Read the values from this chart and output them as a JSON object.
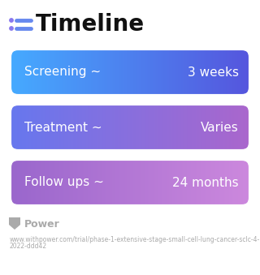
{
  "title": "Timeline",
  "background_color": "#ffffff",
  "bars": [
    {
      "label": "Screening ~",
      "value": "3 weeks",
      "c_left": "#45aaff",
      "c_right": "#5555dd"
    },
    {
      "label": "Treatment ~",
      "value": "Varies",
      "c_left": "#6677ee",
      "c_right": "#aa66cc"
    },
    {
      "label": "Follow ups ~",
      "value": "24 months",
      "c_left": "#9966cc",
      "c_right": "#cc88dd"
    }
  ],
  "icon_dot_color": "#8877ee",
  "icon_line_color": "#6688ee",
  "title_color": "#111111",
  "title_fontsize": 20,
  "bar_label_fontsize": 11,
  "bar_value_fontsize": 11,
  "footer_logo_color": "#aaaaaa",
  "footer_url_color": "#aaaaaa",
  "footer_logo_fontsize": 9,
  "footer_url_fontsize": 5.5,
  "footer_url": "www.withpower.com/trial/phase-1-extensive-stage-small-cell-lung-cancer-sclc-4-\n2022-ddd42"
}
